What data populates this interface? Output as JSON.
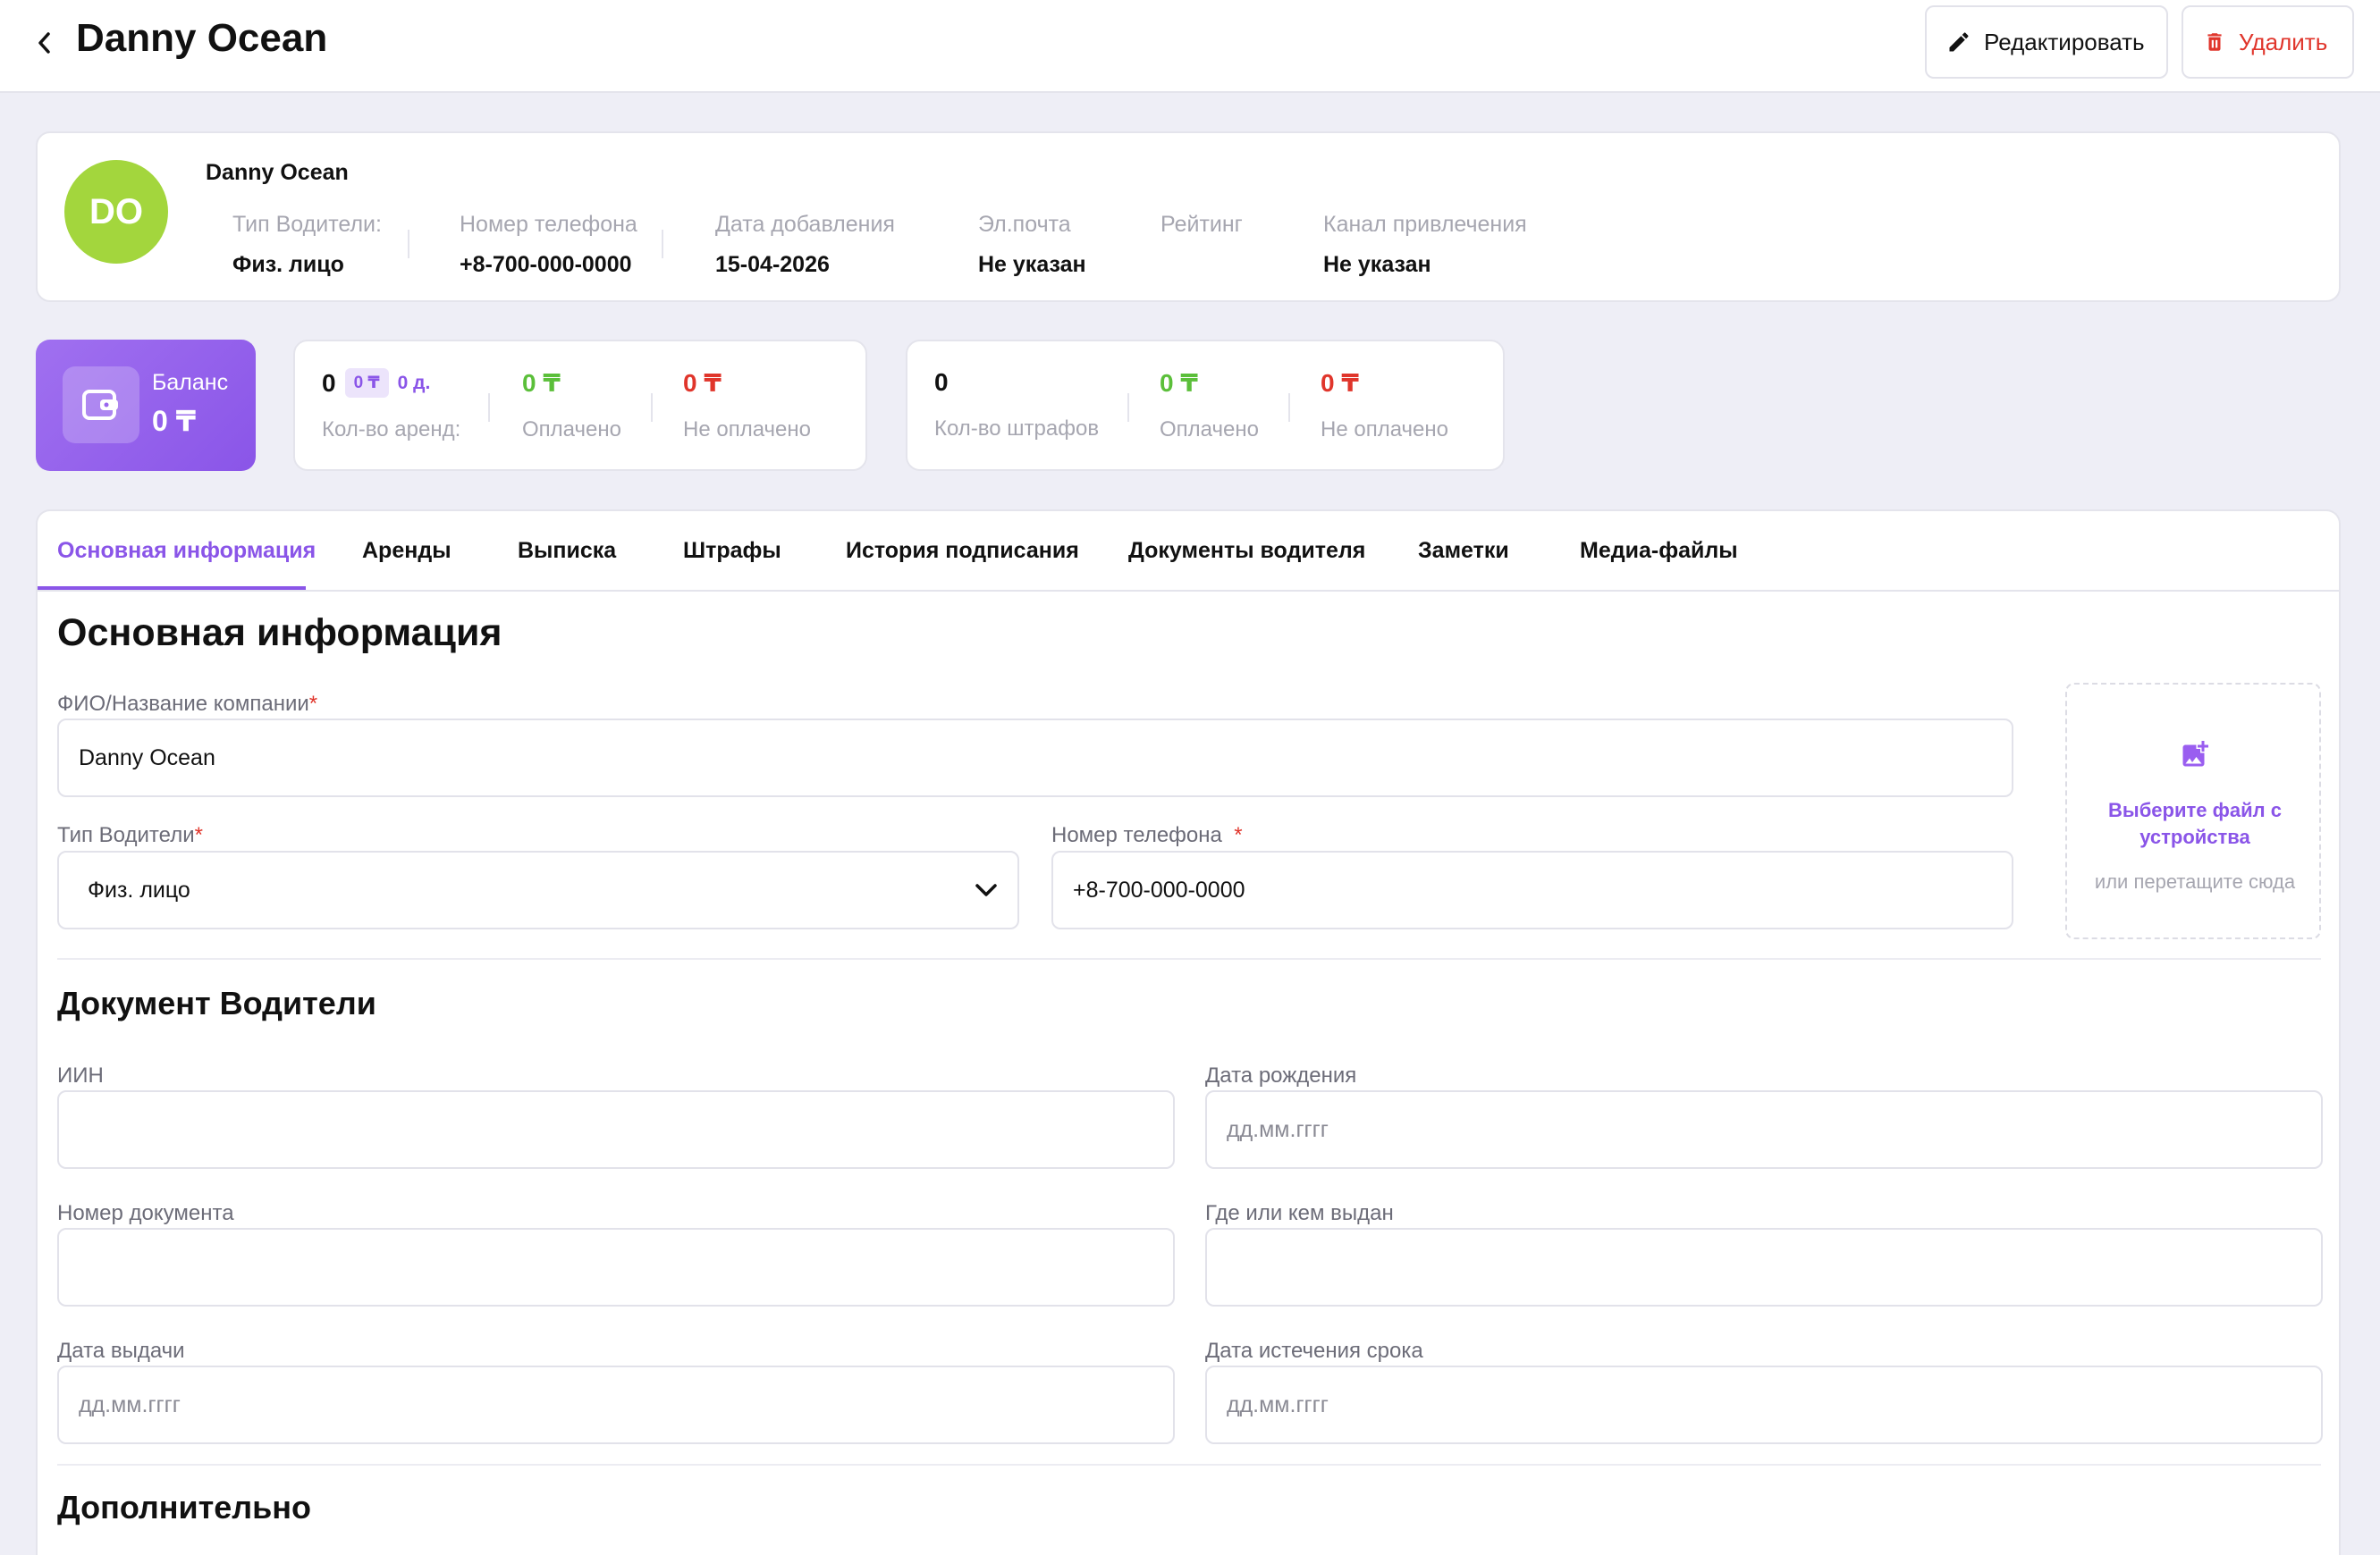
{
  "header": {
    "title": "Danny Ocean",
    "edit_label": "Редактировать",
    "delete_label": "Удалить"
  },
  "profile": {
    "initials": "DO",
    "name": "Danny Ocean",
    "fields": [
      {
        "label": "Тип Водители:",
        "value": "Физ. лицо"
      },
      {
        "label": "Номер телефона",
        "value": "+8-700-000-0000"
      },
      {
        "label": "Дата добавления",
        "value": "15-04-2026"
      },
      {
        "label": "Эл.почта",
        "value": "Не указан"
      },
      {
        "label": "Рейтинг",
        "value": ""
      },
      {
        "label": "Канал привлечения",
        "value": "Не указан"
      }
    ]
  },
  "balance": {
    "label": "Баланс",
    "value": "0 ₸"
  },
  "rentals": {
    "count": "0",
    "chip": "0 ₸",
    "days": "0 д.",
    "count_label": "Кол-во аренд:",
    "paid": "0 ₸",
    "paid_label": "Оплачено",
    "unpaid": "0 ₸",
    "unpaid_label": "Не оплачено"
  },
  "fines": {
    "count": "0",
    "count_label": "Кол-во штрафов",
    "paid": "0 ₸",
    "paid_label": "Оплачено",
    "unpaid": "0 ₸",
    "unpaid_label": "Не оплачено"
  },
  "tabs": [
    {
      "label": "Основная информация",
      "active": true
    },
    {
      "label": "Аренды"
    },
    {
      "label": "Выписка"
    },
    {
      "label": "Штрафы"
    },
    {
      "label": "История подписания"
    },
    {
      "label": "Документы водителя"
    },
    {
      "label": "Заметки"
    },
    {
      "label": "Медиа-файлы"
    }
  ],
  "form": {
    "section_title": "Основная информация",
    "name_label": "ФИО/Название компании",
    "name_value": "Danny Ocean",
    "type_label": "Тип Водители",
    "type_value": "Физ. лицо",
    "phone_label": "Номер телефона",
    "phone_value": "+8-700-000-0000",
    "required_mark": "*",
    "upload_title": "Выберите файл с устройства",
    "upload_sub": "или перетащите сюда"
  },
  "document": {
    "section_title": "Документ Водители",
    "iin_label": "ИИН",
    "birth_label": "Дата рождения",
    "birth_placeholder": "дд.мм.гггг",
    "docnum_label": "Номер документа",
    "issuer_label": "Где или кем выдан",
    "issue_date_label": "Дата выдачи",
    "issue_date_placeholder": "дд.мм.гггг",
    "expiry_label": "Дата истечения срока",
    "expiry_placeholder": "дд.мм.гггг"
  },
  "extra": {
    "section_title": "Дополнительно"
  },
  "colors": {
    "accent": "#8a55e8",
    "avatar": "#a3d63d",
    "paid": "#5bbf3a",
    "unpaid": "#e0352b"
  }
}
